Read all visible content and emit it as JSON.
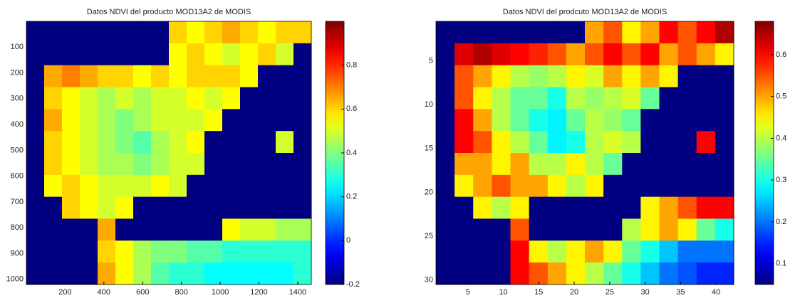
{
  "chart_data": [
    {
      "type": "heatmap",
      "title": "Datos NDVI del producto MOD13A2 de MODIS",
      "colormap": "jet",
      "y_reversed": true,
      "xlim": [
        0,
        1470
      ],
      "ylim": [
        0,
        1020
      ],
      "xticks": [
        200,
        400,
        600,
        800,
        1000,
        1200,
        1400
      ],
      "yticks": [
        100,
        200,
        300,
        400,
        500,
        600,
        700,
        800,
        900,
        1000
      ],
      "clim": [
        -0.2,
        1
      ],
      "cticks": [
        -0.2,
        0,
        0.2,
        0.4,
        0.6,
        0.8
      ],
      "z": [
        [
          -0.2,
          -0.2,
          -0.2,
          -0.2,
          -0.2,
          -0.2,
          -0.2,
          -0.2,
          0.6,
          0.55,
          0.6,
          0.65,
          0.6,
          0.55,
          0.6,
          0.6
        ],
        [
          -0.2,
          -0.2,
          -0.2,
          -0.2,
          -0.2,
          -0.2,
          -0.2,
          -0.2,
          0.55,
          0.6,
          0.55,
          0.5,
          0.55,
          0.6,
          0.5,
          -0.2
        ],
        [
          -0.2,
          0.65,
          0.7,
          0.65,
          0.6,
          0.6,
          0.55,
          0.6,
          0.55,
          0.6,
          0.6,
          0.6,
          0.55,
          -0.2,
          -0.2,
          -0.2
        ],
        [
          -0.2,
          0.6,
          0.55,
          0.5,
          0.45,
          0.5,
          0.45,
          0.5,
          0.5,
          0.55,
          0.5,
          0.55,
          -0.2,
          -0.2,
          -0.2,
          -0.2
        ],
        [
          -0.2,
          0.65,
          0.55,
          0.5,
          0.45,
          0.4,
          0.45,
          0.5,
          0.5,
          0.5,
          0.55,
          -0.2,
          -0.2,
          -0.2,
          -0.2,
          -0.2
        ],
        [
          -0.2,
          0.6,
          0.55,
          0.5,
          0.45,
          0.4,
          0.35,
          0.45,
          0.5,
          0.55,
          -0.2,
          -0.2,
          -0.2,
          -0.2,
          0.5,
          -0.2
        ],
        [
          -0.2,
          0.6,
          0.55,
          0.5,
          0.45,
          0.45,
          0.4,
          0.45,
          0.5,
          0.5,
          -0.2,
          -0.2,
          -0.2,
          -0.2,
          -0.2,
          -0.2
        ],
        [
          -0.2,
          0.55,
          0.6,
          0.55,
          0.5,
          0.5,
          0.5,
          0.55,
          0.5,
          -0.2,
          -0.2,
          -0.2,
          -0.2,
          -0.2,
          -0.2,
          -0.2
        ],
        [
          -0.2,
          -0.2,
          0.6,
          0.55,
          0.5,
          0.55,
          -0.2,
          -0.2,
          -0.2,
          -0.2,
          -0.2,
          -0.2,
          -0.2,
          -0.2,
          -0.2,
          -0.2
        ],
        [
          -0.2,
          -0.2,
          -0.2,
          -0.2,
          0.65,
          -0.2,
          -0.2,
          -0.2,
          -0.2,
          -0.2,
          -0.2,
          0.55,
          0.5,
          0.5,
          0.45,
          0.45
        ],
        [
          -0.2,
          -0.2,
          -0.2,
          -0.2,
          0.6,
          0.55,
          0.45,
          0.4,
          0.4,
          0.35,
          0.35,
          0.3,
          0.3,
          0.3,
          0.3,
          0.3
        ],
        [
          -0.2,
          -0.2,
          -0.2,
          -0.2,
          0.65,
          0.55,
          0.45,
          0.35,
          0.3,
          0.3,
          0.25,
          0.25,
          0.25,
          0.25,
          0.25,
          0.3
        ]
      ]
    },
    {
      "type": "heatmap",
      "title": "Datos NDVI del prodcuto MOD13A2 de MODIS",
      "colormap": "jet",
      "y_reversed": true,
      "xlim": [
        0.5,
        42.5
      ],
      "ylim": [
        0.5,
        30.5
      ],
      "xticks": [
        5,
        10,
        15,
        20,
        25,
        30,
        35,
        40
      ],
      "yticks": [
        5,
        10,
        15,
        20,
        25,
        30
      ],
      "clim": [
        0.05,
        0.68
      ],
      "cticks": [
        0.1,
        0.2,
        0.3,
        0.4,
        0.5,
        0.6
      ],
      "z": [
        [
          0.05,
          0.05,
          0.05,
          0.05,
          0.05,
          0.05,
          0.05,
          0.05,
          0.5,
          0.55,
          0.45,
          0.5,
          0.6,
          0.55,
          0.6,
          0.65
        ],
        [
          0.05,
          0.62,
          0.65,
          0.62,
          0.6,
          0.58,
          0.55,
          0.5,
          0.55,
          0.6,
          0.55,
          0.6,
          0.5,
          0.55,
          0.5,
          0.45
        ],
        [
          0.05,
          0.55,
          0.5,
          0.45,
          0.4,
          0.38,
          0.4,
          0.45,
          0.42,
          0.5,
          0.45,
          0.5,
          0.45,
          0.05,
          0.05,
          0.05
        ],
        [
          0.05,
          0.55,
          0.45,
          0.4,
          0.35,
          0.35,
          0.3,
          0.4,
          0.38,
          0.4,
          0.42,
          0.35,
          0.05,
          0.05,
          0.05,
          0.05
        ],
        [
          0.05,
          0.6,
          0.5,
          0.4,
          0.35,
          0.3,
          0.28,
          0.35,
          0.4,
          0.38,
          0.35,
          0.05,
          0.05,
          0.05,
          0.05,
          0.05
        ],
        [
          0.05,
          0.6,
          0.55,
          0.45,
          0.4,
          0.35,
          0.28,
          0.3,
          0.4,
          0.42,
          0.4,
          0.05,
          0.05,
          0.05,
          0.6,
          0.05
        ],
        [
          0.05,
          0.5,
          0.5,
          0.45,
          0.5,
          0.4,
          0.4,
          0.45,
          0.4,
          0.35,
          0.05,
          0.05,
          0.05,
          0.05,
          0.05,
          0.05
        ],
        [
          0.05,
          0.45,
          0.5,
          0.55,
          0.5,
          0.5,
          0.45,
          0.4,
          0.45,
          0.05,
          0.05,
          0.05,
          0.05,
          0.05,
          0.05,
          0.05
        ],
        [
          0.05,
          0.05,
          0.45,
          0.4,
          0.45,
          0.05,
          0.05,
          0.05,
          0.05,
          0.05,
          0.05,
          0.45,
          0.5,
          0.55,
          0.6,
          0.6
        ],
        [
          0.05,
          0.05,
          0.05,
          0.05,
          0.55,
          0.05,
          0.05,
          0.05,
          0.05,
          0.05,
          0.4,
          0.45,
          0.5,
          0.45,
          0.35,
          0.3
        ],
        [
          0.05,
          0.05,
          0.05,
          0.05,
          0.6,
          0.45,
          0.4,
          0.45,
          0.5,
          0.45,
          0.35,
          0.3,
          0.25,
          0.2,
          0.2,
          0.2
        ],
        [
          0.05,
          0.05,
          0.05,
          0.05,
          0.6,
          0.55,
          0.5,
          0.45,
          0.4,
          0.35,
          0.3,
          0.25,
          0.2,
          0.18,
          0.15,
          0.15
        ]
      ]
    }
  ]
}
